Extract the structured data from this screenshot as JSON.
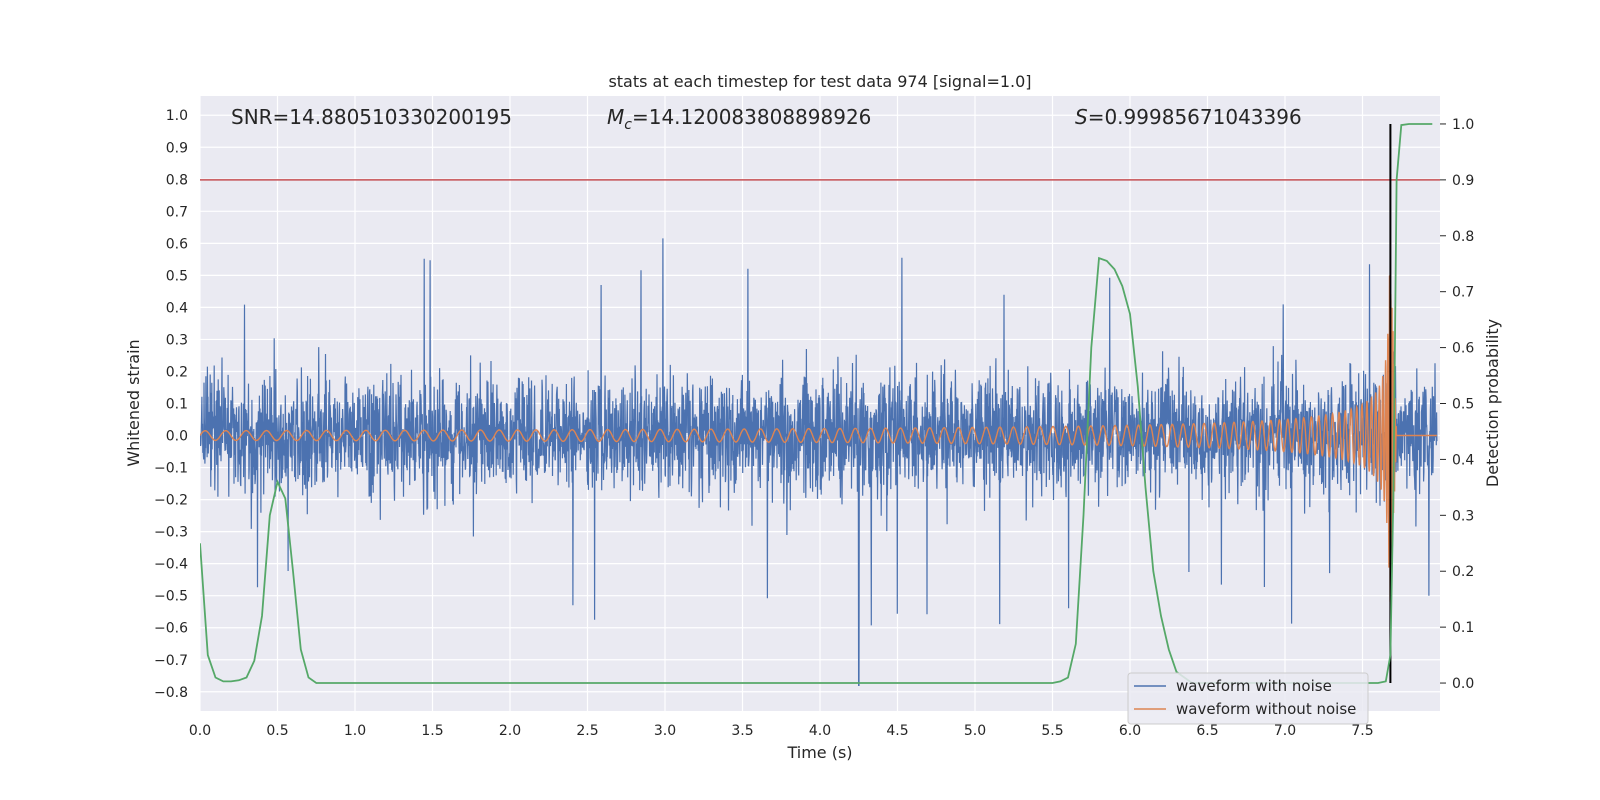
{
  "chart_data": {
    "type": "line",
    "title": "stats at each timestep for test data 974 [signal=1.0]",
    "xlabel": "Time (s)",
    "ylabel": "Whitened strain",
    "y2label": "Detection probability",
    "xlim": [
      0.0,
      8.0
    ],
    "ylim": [
      -0.86,
      1.06
    ],
    "y2lim": [
      -0.05,
      1.05
    ],
    "x_ticks": [
      0.0,
      0.5,
      1.0,
      1.5,
      2.0,
      2.5,
      3.0,
      3.5,
      4.0,
      4.5,
      5.0,
      5.5,
      6.0,
      6.5,
      7.0,
      7.5
    ],
    "x_tick_labels": [
      "0.0",
      "0.5",
      "1.0",
      "1.5",
      "2.0",
      "2.5",
      "3.0",
      "3.5",
      "4.0",
      "4.5",
      "5.0",
      "5.5",
      "6.0",
      "6.5",
      "7.0",
      "7.5"
    ],
    "y_ticks": [
      -0.8,
      -0.7,
      -0.6,
      -0.5,
      -0.4,
      -0.3,
      -0.2,
      -0.1,
      0.0,
      0.1,
      0.2,
      0.3,
      0.4,
      0.5,
      0.6,
      0.7,
      0.8,
      0.9,
      1.0
    ],
    "y_tick_labels": [
      "−0.8",
      "−0.7",
      "−0.6",
      "−0.5",
      "−0.4",
      "−0.3",
      "−0.2",
      "−0.1",
      "0.0",
      "0.1",
      "0.2",
      "0.3",
      "0.4",
      "0.5",
      "0.6",
      "0.7",
      "0.8",
      "0.9",
      "1.0"
    ],
    "y2_ticks": [
      0.0,
      0.1,
      0.2,
      0.3,
      0.4,
      0.5,
      0.6,
      0.7,
      0.8,
      0.9,
      1.0
    ],
    "y2_tick_labels": [
      "0.0",
      "0.1",
      "0.2",
      "0.3",
      "0.4",
      "0.5",
      "0.6",
      "0.7",
      "0.8",
      "0.9",
      "1.0"
    ],
    "grid": true,
    "annotations": {
      "snr": "SNR=14.880510330200195",
      "mc_symbol": "M",
      "mc_sub": "c",
      "mc_value": "=14.120083808898926",
      "s_symbol": "S",
      "s_value": "=0.99985671043396"
    },
    "threshold_y2": 0.9,
    "merger_time": 7.68,
    "legend": {
      "placement": "lower-right",
      "entries": [
        "waveform with noise",
        "waveform without noise"
      ]
    },
    "series": [
      {
        "name": "waveform with noise",
        "color": "#4c72b0",
        "axis": "left",
        "description": "whitened strain, dense noise band approx ±0.25 with spikes up to ±0.6; min near -0.78 at t≈4.25"
      },
      {
        "name": "waveform without noise",
        "color": "#dd8452",
        "axis": "left",
        "chirp": {
          "t_end": 7.68,
          "amp_start": 0.015,
          "amp_end": 0.56,
          "ringdown_until": 7.72
        }
      },
      {
        "color": "#55a868",
        "axis": "right",
        "x": [
          0.0,
          0.05,
          0.1,
          0.15,
          0.2,
          0.25,
          0.3,
          0.35,
          0.4,
          0.45,
          0.5,
          0.55,
          0.6,
          0.65,
          0.7,
          0.75,
          0.8,
          0.85,
          1.0,
          2.0,
          3.0,
          4.0,
          5.0,
          5.4,
          5.5,
          5.55,
          5.6,
          5.65,
          5.7,
          5.75,
          5.8,
          5.85,
          5.9,
          5.95,
          6.0,
          6.05,
          6.1,
          6.15,
          6.2,
          6.25,
          6.3,
          6.4,
          6.5,
          7.0,
          7.5,
          7.6,
          7.65,
          7.68,
          7.7,
          7.72,
          7.75,
          7.8,
          7.85,
          7.9,
          7.95
        ],
        "y": [
          0.25,
          0.05,
          0.01,
          0.003,
          0.003,
          0.005,
          0.01,
          0.04,
          0.12,
          0.3,
          0.36,
          0.33,
          0.2,
          0.06,
          0.01,
          0.0,
          0.0,
          0.0,
          0.0,
          0.0,
          0.0,
          0.0,
          0.0,
          0.0,
          0.0,
          0.003,
          0.01,
          0.07,
          0.3,
          0.6,
          0.76,
          0.755,
          0.74,
          0.71,
          0.66,
          0.53,
          0.35,
          0.2,
          0.12,
          0.06,
          0.02,
          0.0,
          0.0,
          0.0,
          0.0,
          0.0,
          0.003,
          0.05,
          0.35,
          0.9,
          0.998,
          1.0,
          1.0,
          1.0,
          1.0
        ]
      }
    ]
  }
}
